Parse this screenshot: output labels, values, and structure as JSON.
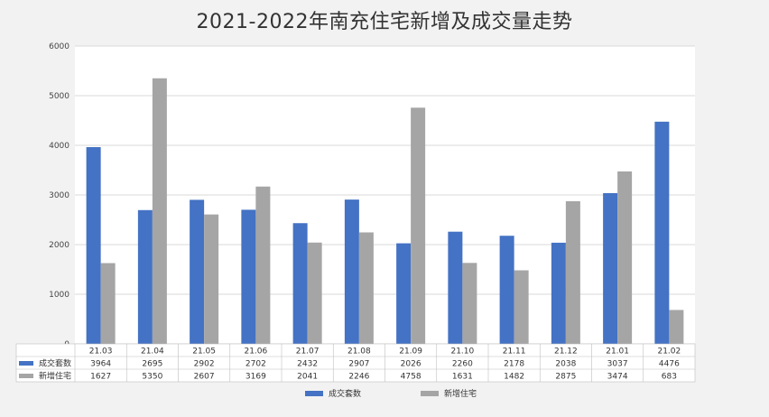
{
  "chart_data": {
    "type": "bar",
    "title": "2021-2022年南充住宅新增及成交量走势",
    "categories": [
      "21.03",
      "21.04",
      "21.05",
      "21.06",
      "21.07",
      "21.08",
      "21.09",
      "21.10",
      "21.11",
      "21.12",
      "21.01",
      "21.02"
    ],
    "series": [
      {
        "name": "成交套数",
        "color": "#4472c4",
        "values": [
          3964,
          2695,
          2902,
          2702,
          2432,
          2907,
          2026,
          2260,
          2178,
          2038,
          3037,
          4476
        ]
      },
      {
        "name": "新增住宅",
        "color": "#a5a5a5",
        "values": [
          1627,
          5350,
          2607,
          3169,
          2041,
          2246,
          4758,
          1631,
          1482,
          2875,
          3474,
          683
        ]
      }
    ],
    "ylim": [
      0,
      6000
    ],
    "yticks": [
      0,
      1000,
      2000,
      3000,
      4000,
      5000,
      6000
    ],
    "grid": true,
    "legend": "bottom",
    "data_table": true
  }
}
